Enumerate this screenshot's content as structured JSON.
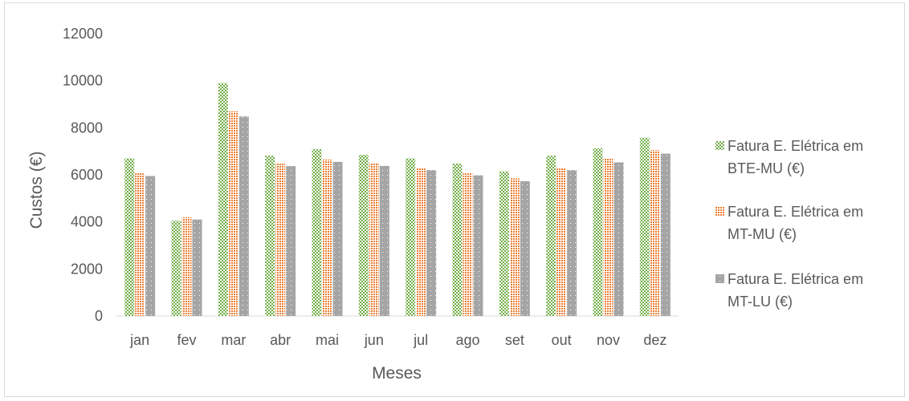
{
  "chart_data": {
    "type": "bar",
    "title": "",
    "xlabel": "Meses",
    "ylabel": "Custos (€)",
    "ylim": [
      0,
      12000
    ],
    "yticks": [
      0,
      2000,
      4000,
      6000,
      8000,
      10000,
      12000
    ],
    "grid": false,
    "legend_position": "right",
    "categories": [
      "jan",
      "fev",
      "mar",
      "abr",
      "mai",
      "jun",
      "jul",
      "ago",
      "set",
      "out",
      "nov",
      "dez"
    ],
    "series": [
      {
        "name": "Fatura E. Elétrica em BTE-MU (€)",
        "legend_lines": [
          "Fatura E. Elétrica em",
          "BTE-MU (€)"
        ],
        "color": "#70ad47",
        "values": [
          6700,
          4050,
          9900,
          6820,
          7100,
          6850,
          6700,
          6480,
          6150,
          6820,
          7130,
          7580
        ]
      },
      {
        "name": "Fatura E. Elétrica em MT-MU (€)",
        "legend_lines": [
          "Fatura E. Elétrica em",
          "MT-MU (€)"
        ],
        "color": "#ed7d31",
        "values": [
          6100,
          4200,
          8700,
          6480,
          6650,
          6500,
          6300,
          6080,
          5850,
          6300,
          6680,
          7050
        ]
      },
      {
        "name": "Fatura E. Elétrica em MT-LU (€)",
        "legend_lines": [
          "Fatura E. Elétrica em",
          "MT-LU (€)"
        ],
        "color": "#a5a5a5",
        "values": [
          5950,
          4100,
          8480,
          6370,
          6550,
          6380,
          6200,
          5980,
          5730,
          6200,
          6530,
          6900
        ]
      }
    ]
  }
}
